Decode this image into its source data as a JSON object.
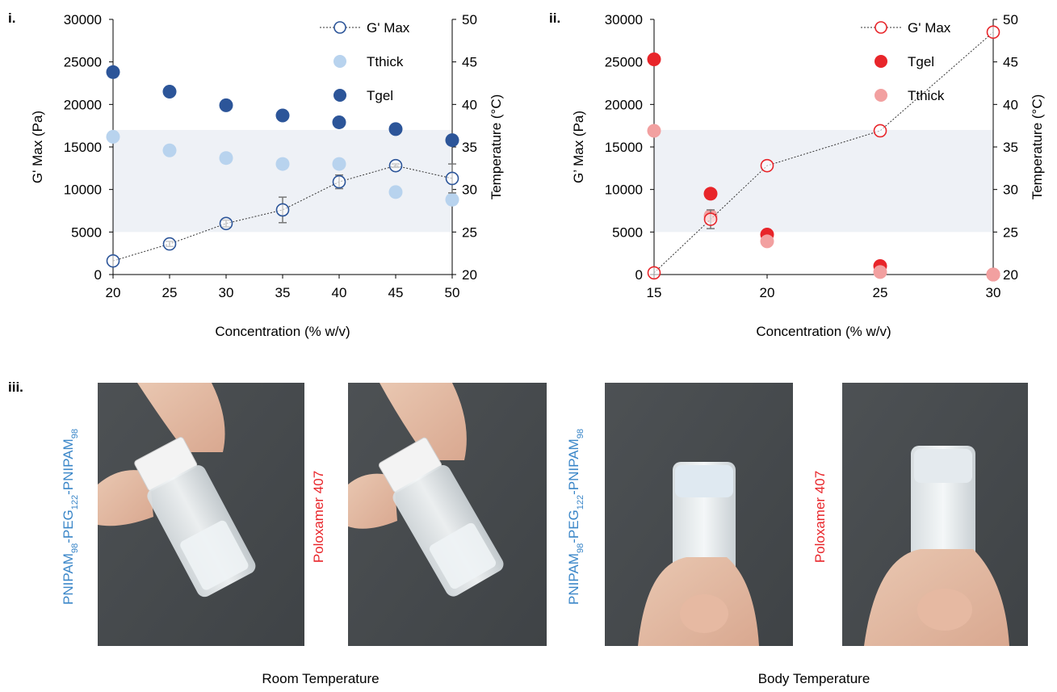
{
  "figure": {
    "label_i": "i.",
    "label_ii": "ii.",
    "label_iii": "iii."
  },
  "chart_data": [
    {
      "type": "scatter",
      "panel": "i.",
      "xlabel": "Concentration (% w/v)",
      "ylabel": "G' Max (Pa)",
      "y2label": "Temperature (°C)",
      "xlim": [
        20,
        50
      ],
      "x_ticks": [
        "20",
        "25",
        "30",
        "35",
        "40",
        "45",
        "50"
      ],
      "ylim": [
        0,
        30000
      ],
      "y_ticks": [
        "0",
        "5000",
        "10000",
        "15000",
        "20000",
        "25000",
        "30000"
      ],
      "y2lim": [
        20,
        50
      ],
      "y2_ticks": [
        "20",
        "25",
        "30",
        "35",
        "40",
        "45",
        "50"
      ],
      "shaded_band_temperature": [
        25,
        37
      ],
      "legend_position": "top-right",
      "series": [
        {
          "name": "G' Max",
          "axis": "left",
          "style": "open-line",
          "color": "#2c5599",
          "x": [
            20,
            25,
            30,
            35,
            40,
            45,
            50
          ],
          "y": [
            1600,
            3600,
            6000,
            7600,
            10900,
            12800,
            11300
          ],
          "err": [
            0,
            300,
            400,
            1500,
            800,
            200,
            1700
          ]
        },
        {
          "name": "Tthick",
          "axis": "right",
          "style": "filled",
          "color": "#b8d3ee",
          "x": [
            20,
            25,
            30,
            35,
            40,
            45,
            50
          ],
          "y": [
            36.2,
            34.6,
            33.7,
            33.0,
            33.0,
            29.7,
            28.8
          ]
        },
        {
          "name": "Tgel",
          "axis": "right",
          "style": "filled",
          "color": "#2c5599",
          "x": [
            20,
            25,
            30,
            35,
            40,
            45,
            50
          ],
          "y": [
            43.8,
            41.5,
            39.9,
            38.7,
            37.9,
            37.1,
            35.8
          ]
        }
      ]
    },
    {
      "type": "scatter",
      "panel": "ii.",
      "xlabel": "Concentration (% w/v)",
      "ylabel": "G’ Max (Pa)",
      "y2label": "Temperature (°C)",
      "xlim": [
        15,
        30
      ],
      "x_ticks": [
        "15",
        "20",
        "25",
        "30"
      ],
      "ylim": [
        0,
        30000
      ],
      "y_ticks": [
        "0",
        "5000",
        "10000",
        "15000",
        "20000",
        "25000",
        "30000"
      ],
      "y2lim": [
        20,
        50
      ],
      "y2_ticks": [
        "20",
        "25",
        "30",
        "35",
        "40",
        "45",
        "50"
      ],
      "shaded_band_temperature": [
        25,
        37
      ],
      "legend_position": "top-right",
      "series": [
        {
          "name": "G' Max",
          "axis": "left",
          "style": "open-line",
          "color": "#e8252a",
          "x": [
            15,
            17.5,
            20,
            25,
            30
          ],
          "y": [
            200,
            6500,
            12800,
            16900,
            28500
          ],
          "err": [
            0,
            1100,
            0,
            0,
            0
          ]
        },
        {
          "name": "Tgel",
          "axis": "right",
          "style": "filled",
          "color": "#e8252a",
          "x": [
            15,
            17.5,
            20,
            25,
            30
          ],
          "y": [
            45.3,
            29.5,
            24.7,
            21.0,
            20.0
          ]
        },
        {
          "name": "Tthick",
          "axis": "right",
          "style": "filled",
          "color": "#f2a0a0",
          "x": [
            15,
            17.5,
            20,
            25,
            30
          ],
          "y": [
            36.9,
            26.9,
            23.9,
            20.3,
            20.0
          ]
        }
      ]
    }
  ],
  "photos": {
    "label_pnipam_1": "PNIPAM98-PEG122-PNIPAM98",
    "label_poloxamer_1": "Poloxamer 407",
    "label_pnipam_2": "PNIPAM98-PEG122-PNIPAM98",
    "label_poloxamer_2": "Poloxamer 407",
    "caption_room": "Room Temperature",
    "caption_body": "Body Temperature",
    "label_color_pnipam": "#3a86c8",
    "label_color_poloxamer": "#e8252a"
  }
}
